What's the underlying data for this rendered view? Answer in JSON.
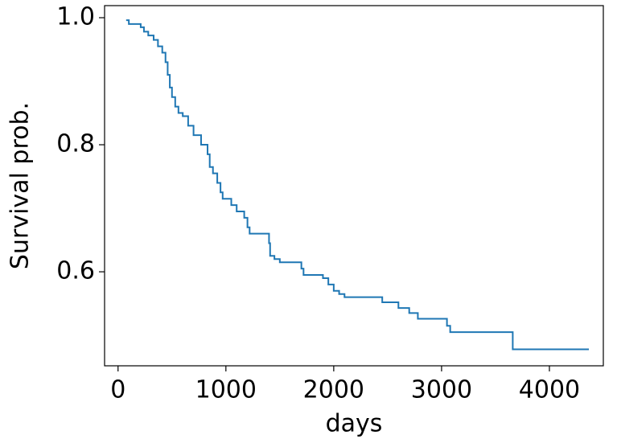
{
  "chart_data": {
    "type": "line",
    "drawstyle": "steps-post",
    "xlabel": "days",
    "ylabel": "Survival prob.",
    "x": [
      75,
      100,
      210,
      240,
      280,
      330,
      370,
      410,
      440,
      460,
      480,
      500,
      530,
      560,
      600,
      650,
      700,
      770,
      830,
      850,
      880,
      920,
      950,
      970,
      1050,
      1100,
      1170,
      1200,
      1220,
      1400,
      1410,
      1450,
      1500,
      1700,
      1720,
      1900,
      1950,
      2000,
      2050,
      2100,
      2450,
      2600,
      2700,
      2780,
      3050,
      3080,
      3660,
      4366
    ],
    "series": [
      {
        "color": "#1f77b4",
        "values": [
          0.996,
          0.99,
          0.985,
          0.978,
          0.972,
          0.965,
          0.955,
          0.945,
          0.93,
          0.91,
          0.89,
          0.875,
          0.86,
          0.85,
          0.845,
          0.83,
          0.815,
          0.8,
          0.785,
          0.765,
          0.755,
          0.74,
          0.725,
          0.715,
          0.705,
          0.695,
          0.685,
          0.67,
          0.66,
          0.645,
          0.625,
          0.62,
          0.615,
          0.605,
          0.595,
          0.59,
          0.58,
          0.57,
          0.565,
          0.56,
          0.552,
          0.543,
          0.535,
          0.526,
          0.515,
          0.505,
          0.478,
          0.478
        ]
      }
    ],
    "xlim": [
      -125,
      4500
    ],
    "ylim": [
      0.452,
      1.019
    ],
    "xticks": [
      0,
      1000,
      2000,
      3000,
      4000
    ],
    "yticks": [
      0.6,
      0.8,
      {
        "value": 1.0,
        "label": "1.0"
      }
    ]
  }
}
